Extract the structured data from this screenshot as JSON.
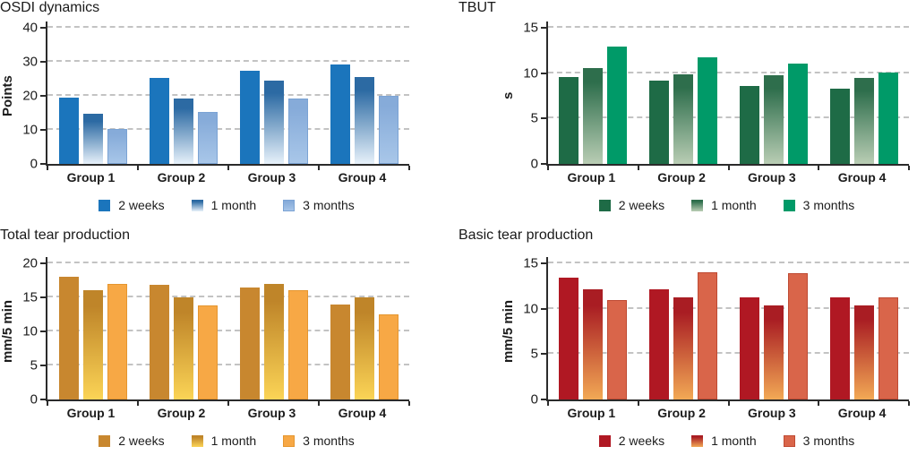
{
  "style": {
    "background": "#ffffff",
    "axis_color": "#2b2b2b",
    "gridline_color": "#c3c3c3",
    "text_color": "#1c1c1c"
  },
  "chart_data": [
    {
      "type": "bar",
      "title": "OSDI dynamics",
      "xlabel": "",
      "ylabel": "Points",
      "ylim": [
        0,
        40
      ],
      "yticks": [
        0,
        10,
        20,
        30,
        40
      ],
      "grid": "horizontal-dashed",
      "legend_position": "bottom",
      "categories": [
        "Group 1",
        "Group 2",
        "Group 3",
        "Group 4"
      ],
      "series": [
        {
          "name": "2 weeks",
          "values": [
            19.5,
            25.2,
            27.4,
            29.2
          ],
          "color": "#1b75bc",
          "gradient": null,
          "border": null
        },
        {
          "name": "1 month",
          "values": [
            14.7,
            19.2,
            24.5,
            25.4
          ],
          "color": "#2c6aa3",
          "gradient": [
            "#2c6aa3",
            "#e7f1fa"
          ],
          "border": null
        },
        {
          "name": "3 months",
          "values": [
            10.2,
            15.3,
            19.3,
            20.1
          ],
          "color": "#8cb1de",
          "gradient": [
            "#86abd9",
            "#a9c7e9"
          ],
          "border": "#7ba3d4"
        }
      ]
    },
    {
      "type": "bar",
      "title": "TBUT",
      "xlabel": "",
      "ylabel": "s",
      "ylim": [
        0,
        15
      ],
      "yticks": [
        0,
        5,
        10,
        15
      ],
      "grid": "horizontal-dashed",
      "legend_position": "bottom",
      "categories": [
        "Group 1",
        "Group 2",
        "Group 3",
        "Group 4"
      ],
      "series": [
        {
          "name": "2 weeks",
          "values": [
            9.6,
            9.2,
            8.6,
            8.3
          ],
          "color": "#1e6b46",
          "gradient": null,
          "border": null
        },
        {
          "name": "1 month",
          "values": [
            10.6,
            9.9,
            9.8,
            9.5
          ],
          "color": "#2e6e4c",
          "gradient": [
            "#2e6e4c",
            "#b9cdb4"
          ],
          "border": null
        },
        {
          "name": "3 months",
          "values": [
            12.9,
            11.7,
            11.1,
            10.1
          ],
          "color": "#009a68",
          "gradient": null,
          "border": null
        }
      ]
    },
    {
      "type": "bar",
      "title": "Total tear production",
      "xlabel": "",
      "ylabel": "mm/5 min",
      "ylim": [
        0,
        20
      ],
      "yticks": [
        0,
        5,
        10,
        15,
        20
      ],
      "grid": "horizontal-dashed",
      "legend_position": "bottom",
      "categories": [
        "Group 1",
        "Group 2",
        "Group 3",
        "Group 4"
      ],
      "series": [
        {
          "name": "2 weeks",
          "values": [
            18.0,
            16.8,
            16.5,
            13.9
          ],
          "color": "#c8872f",
          "gradient": null,
          "border": null
        },
        {
          "name": "1 month",
          "values": [
            16.1,
            15.0,
            17.0,
            15.0
          ],
          "color": "#bf8529",
          "gradient": [
            "#bf8529",
            "#fbd456"
          ],
          "border": null
        },
        {
          "name": "3 months",
          "values": [
            17.0,
            13.8,
            16.0,
            12.5
          ],
          "color": "#f7a845",
          "gradient": null,
          "border": "#e5962f"
        }
      ]
    },
    {
      "type": "bar",
      "title": "Basic tear production",
      "xlabel": "",
      "ylabel": "mm/5 min",
      "ylim": [
        0,
        15
      ],
      "yticks": [
        0,
        5,
        10,
        15
      ],
      "grid": "horizontal-dashed",
      "legend_position": "bottom",
      "categories": [
        "Group 1",
        "Group 2",
        "Group 3",
        "Group 4"
      ],
      "series": [
        {
          "name": "2 weeks",
          "values": [
            13.4,
            12.1,
            11.3,
            11.3
          ],
          "color": "#b01823",
          "gradient": null,
          "border": null
        },
        {
          "name": "1 month",
          "values": [
            12.1,
            11.3,
            10.4,
            10.4
          ],
          "color": "#a91d23",
          "gradient": [
            "#a91d23",
            "#f2a955"
          ],
          "border": null
        },
        {
          "name": "3 months",
          "values": [
            11.0,
            14.0,
            13.9,
            11.3
          ],
          "color": "#d9654a",
          "gradient": null,
          "border": "#bf4a33"
        }
      ]
    }
  ]
}
